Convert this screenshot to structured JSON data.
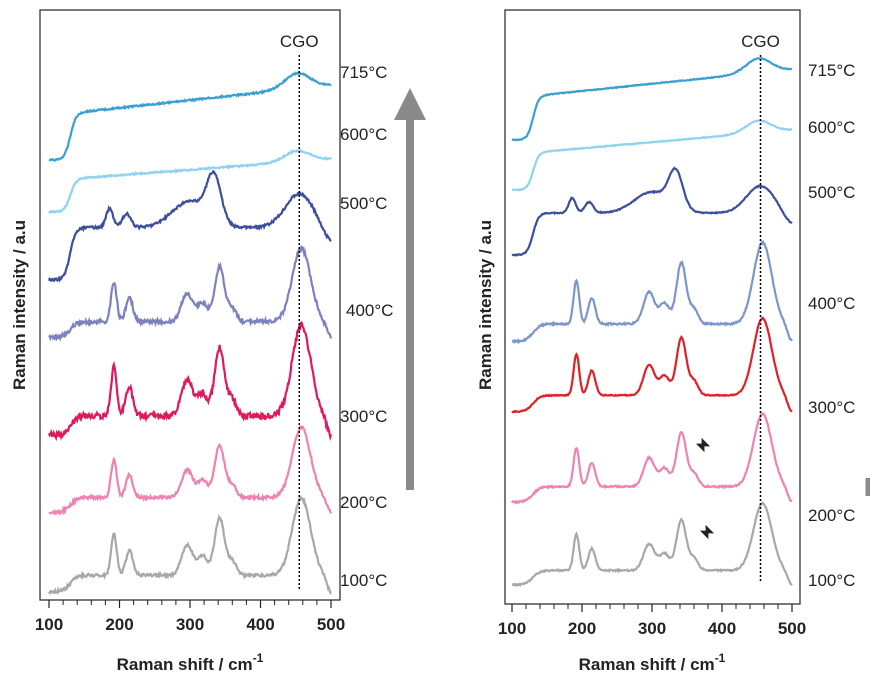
{
  "chart_data": [
    {
      "type": "line",
      "panel": "left",
      "marker_label": "CGO",
      "marker_x": 455,
      "xlabel": "Raman shift / cm",
      "xlabel_superscript": "-1",
      "ylabel": "Raman intensity / a.u",
      "xlim": [
        100,
        500
      ],
      "xticks": [
        "100",
        "200",
        "300",
        "400",
        "500"
      ],
      "arrow": "up",
      "series": [
        {
          "name": "715°C",
          "color": "#3aa0d2"
        },
        {
          "name": "600°C",
          "color": "#8fd3ef"
        },
        {
          "name": "500°C",
          "color": "#3c4f9c"
        },
        {
          "name": "400°C",
          "color": "#7c82c0"
        },
        {
          "name": "300°C",
          "color": "#e0185e"
        },
        {
          "name": "200°C",
          "color": "#ee82b0"
        },
        {
          "name": "100°C",
          "color": "#a8a8a8"
        }
      ]
    },
    {
      "type": "line",
      "panel": "right",
      "marker_label": "CGO",
      "marker_x": 455,
      "xlabel": "Raman shift / cm",
      "xlabel_superscript": "-1",
      "ylabel": "Raman intensity / a.u",
      "xlim": [
        100,
        500
      ],
      "xticks": [
        "100",
        "200",
        "300",
        "400",
        "500"
      ],
      "arrow": "down",
      "annotations": [
        "star at ~375 cm-1 (200°C)",
        "star at ~380 cm-1 (100°C)"
      ],
      "series": [
        {
          "name": "715°C",
          "color": "#3aa0d2"
        },
        {
          "name": "600°C",
          "color": "#8fd3ef"
        },
        {
          "name": "500°C",
          "color": "#3c4f9c"
        },
        {
          "name": "400°C",
          "color": "#7c96cc"
        },
        {
          "name": "300°C",
          "color": "#e02027"
        },
        {
          "name": "200°C",
          "color": "#ee82b0"
        },
        {
          "name": "100°C",
          "color": "#a8a8a8"
        }
      ]
    }
  ]
}
